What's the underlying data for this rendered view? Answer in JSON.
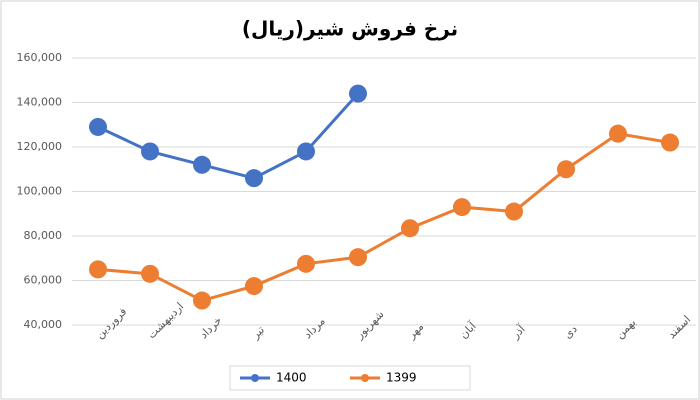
{
  "chart_data": {
    "type": "line",
    "title": "نرخ فروش شیر(ریال)",
    "categories": [
      "فروردین",
      "اردیبهشت",
      "خرداد",
      "تیر",
      "مرداد",
      "شهریور",
      "مهر",
      "آبان",
      "آذر",
      "دی",
      "بهمن",
      "اسفند"
    ],
    "series": [
      {
        "name": "1400",
        "color": "#4472c4",
        "values": [
          129000,
          118000,
          112000,
          106000,
          118000,
          144000,
          null,
          null,
          null,
          null,
          null,
          null
        ]
      },
      {
        "name": "1399",
        "color": "#ed7d31",
        "values": [
          65000,
          63000,
          51000,
          57500,
          67500,
          70500,
          83500,
          93000,
          91000,
          110000,
          126000,
          122000
        ]
      }
    ],
    "ylim": [
      40000,
      160000
    ],
    "yticks": [
      {
        "value": 40000,
        "label": "40,000"
      },
      {
        "value": 60000,
        "label": "60,000"
      },
      {
        "value": 80000,
        "label": "80,000"
      },
      {
        "value": 100000,
        "label": "100,000"
      },
      {
        "value": 120000,
        "label": "120,000"
      },
      {
        "value": 140000,
        "label": "140,000"
      },
      {
        "value": 160000,
        "label": "160,000"
      }
    ],
    "grid": true,
    "legend": "bottom"
  }
}
